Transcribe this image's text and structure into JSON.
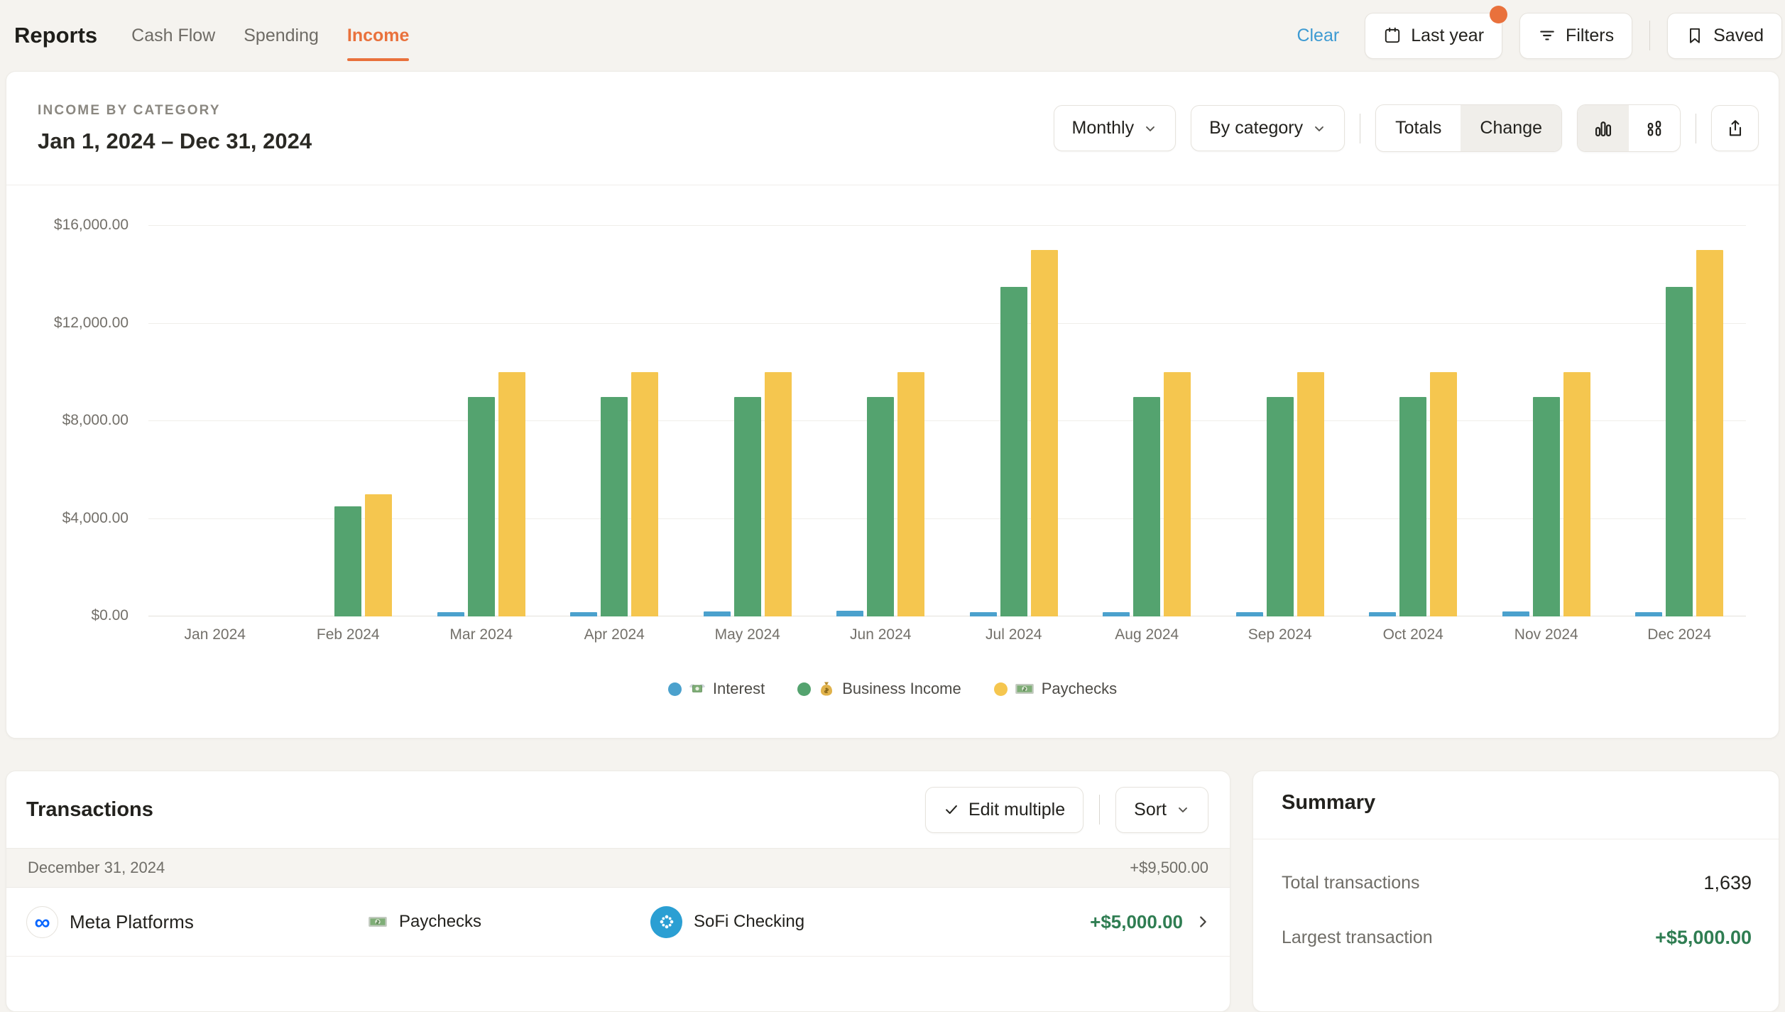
{
  "nav": {
    "title": "Reports",
    "tabs": [
      {
        "label": "Cash Flow",
        "active": false
      },
      {
        "label": "Spending",
        "active": false
      },
      {
        "label": "Income",
        "active": true
      }
    ],
    "clear_label": "Clear",
    "last_year_label": "Last year",
    "last_year_has_badge": true,
    "filters_label": "Filters",
    "saved_label": "Saved"
  },
  "chart_card": {
    "eyebrow": "INCOME BY CATEGORY",
    "date_range": "Jan 1, 2024 – Dec 31, 2024",
    "controls": {
      "granularity": "Monthly",
      "grouping": "By category",
      "mode_options": [
        "Totals",
        "Change"
      ],
      "mode_selected": "Change",
      "chart_style_options": [
        "grouped-bar-chart-icon",
        "stacked-bar-chart-icon"
      ],
      "chart_style_selected": "grouped-bar-chart-icon"
    }
  },
  "chart_data": {
    "type": "bar",
    "title": "Income by Category",
    "subtitle": "Jan 1, 2024 – Dec 31, 2024",
    "categories": [
      "Jan 2024",
      "Feb 2024",
      "Mar 2024",
      "Apr 2024",
      "May 2024",
      "Jun 2024",
      "Jul 2024",
      "Aug 2024",
      "Sep 2024",
      "Oct 2024",
      "Nov 2024",
      "Dec 2024"
    ],
    "series": [
      {
        "name": "Interest",
        "icon": "money-with-wings",
        "color": "#4ba1cd",
        "values": [
          0,
          0,
          140,
          175,
          210,
          240,
          60,
          120,
          60,
          120,
          215,
          120
        ]
      },
      {
        "name": "Business Income",
        "icon": "money-bag",
        "color": "#54a36f",
        "values": [
          0,
          4500,
          9000,
          9000,
          9000,
          9000,
          13500,
          9000,
          9000,
          9000,
          9000,
          13500
        ]
      },
      {
        "name": "Paychecks",
        "icon": "banknote",
        "color": "#f5c64f",
        "values": [
          0,
          5000,
          10000,
          10000,
          10000,
          10000,
          15000,
          10000,
          10000,
          10000,
          10000,
          15000
        ]
      }
    ],
    "ylim": [
      0,
      16000
    ],
    "ytick_labels": [
      "$0.00",
      "$4,000.00",
      "$8,000.00",
      "$12,000.00",
      "$16,000.00"
    ],
    "grid": true,
    "legend_position": "bottom"
  },
  "transactions": {
    "title": "Transactions",
    "edit_multiple_label": "Edit multiple",
    "sort_label": "Sort",
    "groups": [
      {
        "date": "December 31, 2024",
        "total": "+$9,500.00",
        "rows": [
          {
            "merchant": "Meta Platforms",
            "category": "Paychecks",
            "category_icon": "banknote",
            "account": "SoFi Checking",
            "amount": "+$5,000.00"
          }
        ]
      }
    ]
  },
  "summary": {
    "title": "Summary",
    "rows": [
      {
        "label": "Total transactions",
        "value": "1,639",
        "positive": false
      },
      {
        "label": "Largest transaction",
        "value": "+$5,000.00",
        "positive": true
      }
    ]
  },
  "colors": {
    "accent_orange": "#e9713c",
    "link_blue": "#3d9ad2",
    "positive_green": "#2f7d52",
    "page_background": "#f5f3ef"
  }
}
